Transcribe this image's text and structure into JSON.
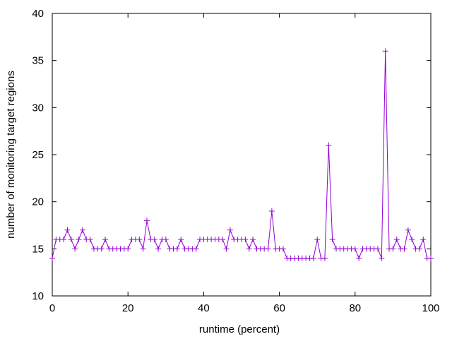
{
  "chart_data": {
    "type": "line",
    "title": "",
    "xlabel": "runtime (percent)",
    "ylabel": "number of monitoring target regions",
    "xlim": [
      0,
      100
    ],
    "ylim": [
      10,
      40
    ],
    "xticks": [
      0,
      20,
      40,
      60,
      80,
      100
    ],
    "yticks": [
      10,
      15,
      20,
      25,
      30,
      35,
      40
    ],
    "grid": false,
    "legend": "none",
    "marker": "plus",
    "color": "#9400d3",
    "series": [
      {
        "values": [
          [
            0,
            14
          ],
          [
            1,
            16
          ],
          [
            2,
            16
          ],
          [
            3,
            16
          ],
          [
            4,
            17
          ],
          [
            5,
            16
          ],
          [
            6,
            15
          ],
          [
            7,
            16
          ],
          [
            8,
            17
          ],
          [
            9,
            16
          ],
          [
            10,
            16
          ],
          [
            11,
            15
          ],
          [
            12,
            15
          ],
          [
            13,
            15
          ],
          [
            14,
            16
          ],
          [
            15,
            15
          ],
          [
            16,
            15
          ],
          [
            17,
            15
          ],
          [
            18,
            15
          ],
          [
            19,
            15
          ],
          [
            20,
            15
          ],
          [
            21,
            16
          ],
          [
            22,
            16
          ],
          [
            23,
            16
          ],
          [
            24,
            15
          ],
          [
            25,
            18
          ],
          [
            26,
            16
          ],
          [
            27,
            16
          ],
          [
            28,
            15
          ],
          [
            29,
            16
          ],
          [
            30,
            16
          ],
          [
            31,
            15
          ],
          [
            32,
            15
          ],
          [
            33,
            15
          ],
          [
            34,
            16
          ],
          [
            35,
            15
          ],
          [
            36,
            15
          ],
          [
            37,
            15
          ],
          [
            38,
            15
          ],
          [
            39,
            16
          ],
          [
            40,
            16
          ],
          [
            41,
            16
          ],
          [
            42,
            16
          ],
          [
            43,
            16
          ],
          [
            44,
            16
          ],
          [
            45,
            16
          ],
          [
            46,
            15
          ],
          [
            47,
            17
          ],
          [
            48,
            16
          ],
          [
            49,
            16
          ],
          [
            50,
            16
          ],
          [
            51,
            16
          ],
          [
            52,
            15
          ],
          [
            53,
            16
          ],
          [
            54,
            15
          ],
          [
            55,
            15
          ],
          [
            56,
            15
          ],
          [
            57,
            15
          ],
          [
            58,
            19
          ],
          [
            59,
            15
          ],
          [
            60,
            15
          ],
          [
            61,
            15
          ],
          [
            62,
            14
          ],
          [
            63,
            14
          ],
          [
            64,
            14
          ],
          [
            65,
            14
          ],
          [
            66,
            14
          ],
          [
            67,
            14
          ],
          [
            68,
            14
          ],
          [
            69,
            14
          ],
          [
            70,
            16
          ],
          [
            71,
            14
          ],
          [
            72,
            14
          ],
          [
            73,
            26
          ],
          [
            74,
            16
          ],
          [
            75,
            15
          ],
          [
            76,
            15
          ],
          [
            77,
            15
          ],
          [
            78,
            15
          ],
          [
            79,
            15
          ],
          [
            80,
            15
          ],
          [
            81,
            14
          ],
          [
            82,
            15
          ],
          [
            83,
            15
          ],
          [
            84,
            15
          ],
          [
            85,
            15
          ],
          [
            86,
            15
          ],
          [
            87,
            14
          ],
          [
            88,
            36
          ],
          [
            89,
            15
          ],
          [
            90,
            15
          ],
          [
            91,
            16
          ],
          [
            92,
            15
          ],
          [
            93,
            15
          ],
          [
            94,
            17
          ],
          [
            95,
            16
          ],
          [
            96,
            15
          ],
          [
            97,
            15
          ],
          [
            98,
            16
          ],
          [
            99,
            14
          ],
          [
            100,
            14
          ]
        ]
      }
    ]
  }
}
